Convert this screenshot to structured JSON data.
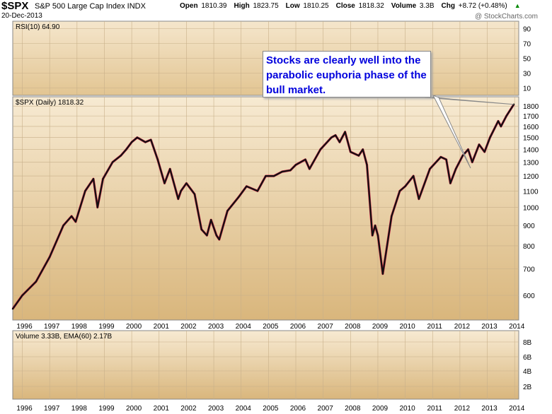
{
  "header": {
    "symbol": "$SPX",
    "index_name": "S&P 500 Large Cap Index INDX",
    "date": "20-Dec-2013",
    "quote": [
      {
        "label": "Open",
        "value": "1810.39"
      },
      {
        "label": "High",
        "value": "1823.75"
      },
      {
        "label": "Low",
        "value": "1810.25"
      },
      {
        "label": "Close",
        "value": "1818.32"
      },
      {
        "label": "Volume",
        "value": "3.3B"
      },
      {
        "label": "Chg",
        "value": "+8.72 (+0.48%)"
      }
    ],
    "change_direction": "up",
    "logo": "@ StockCharts.com"
  },
  "annotation": {
    "text": "Stocks are clearly well into the parabolic euphoria phase of the bull market.",
    "color": "#0000dd"
  },
  "colors": {
    "panel_bg_top": "#f7ead2",
    "panel_bg_bottom": "#d9b67c",
    "price_bar": "#111111",
    "down_bar": "#cc0033",
    "accent_up": "#008800"
  },
  "chart_data": [
    {
      "type": "line",
      "panel": "indicator",
      "legend": "RSI(10) 64.90",
      "ylim": [
        0,
        100
      ],
      "y_ticks": [
        10,
        30,
        50,
        70,
        90
      ],
      "series": []
    },
    {
      "type": "line",
      "panel": "price",
      "legend": "$SPX (Daily) 1818.32",
      "x_ticks": [
        "1996",
        "1997",
        "1998",
        "1999",
        "2000",
        "2001",
        "2002",
        "2003",
        "2004",
        "2005",
        "2006",
        "2007",
        "2008",
        "2009",
        "2010",
        "2011",
        "2012",
        "2013",
        "2014"
      ],
      "xlim": [
        1995.65,
        2014.15
      ],
      "y_scale": "log",
      "ylim": [
        520,
        1900
      ],
      "y_ticks": [
        600,
        700,
        800,
        900,
        1000,
        1100,
        1200,
        1300,
        1400,
        1500,
        1600,
        1700,
        1800
      ],
      "grid": true,
      "series": [
        {
          "x": [
            1995.65,
            1996.0,
            1996.5,
            1997.0,
            1997.5,
            1997.8,
            1997.95,
            1998.3,
            1998.6,
            1998.75,
            1998.95,
            1999.3,
            1999.6,
            1999.8,
            2000.0,
            2000.2,
            2000.5,
            2000.7,
            2000.95,
            2001.2,
            2001.4,
            2001.7,
            2001.8,
            2002.0,
            2002.3,
            2002.55,
            2002.75,
            2002.9,
            2003.1,
            2003.2,
            2003.5,
            2003.9,
            2004.2,
            2004.6,
            2004.9,
            2005.2,
            2005.5,
            2005.8,
            2006.0,
            2006.35,
            2006.5,
            2006.9,
            2007.3,
            2007.45,
            2007.6,
            2007.8,
            2008.0,
            2008.3,
            2008.45,
            2008.6,
            2008.8,
            2008.9,
            2009.0,
            2009.18,
            2009.5,
            2009.8,
            2010.0,
            2010.3,
            2010.5,
            2010.9,
            2011.3,
            2011.5,
            2011.65,
            2011.85,
            2012.1,
            2012.3,
            2012.45,
            2012.7,
            2012.9,
            2013.1,
            2013.4,
            2013.5,
            2013.7,
            2013.97
          ],
          "values": [
            555,
            600,
            650,
            750,
            900,
            950,
            920,
            1100,
            1180,
            1000,
            1180,
            1300,
            1350,
            1400,
            1460,
            1500,
            1460,
            1480,
            1320,
            1150,
            1250,
            1050,
            1100,
            1150,
            1080,
            880,
            850,
            930,
            850,
            830,
            980,
            1060,
            1130,
            1100,
            1200,
            1200,
            1230,
            1240,
            1280,
            1320,
            1250,
            1400,
            1500,
            1520,
            1460,
            1550,
            1380,
            1350,
            1400,
            1280,
            850,
            900,
            850,
            680,
            950,
            1100,
            1130,
            1200,
            1050,
            1250,
            1340,
            1320,
            1150,
            1250,
            1350,
            1400,
            1300,
            1440,
            1380,
            1500,
            1650,
            1600,
            1700,
            1818
          ]
        }
      ]
    },
    {
      "type": "bar",
      "panel": "volume",
      "legend": "Volume 3.33B, EMA(60) 2.17B",
      "y_ticks": [
        "2B",
        "4B",
        "6B",
        "8B"
      ],
      "series": []
    }
  ]
}
